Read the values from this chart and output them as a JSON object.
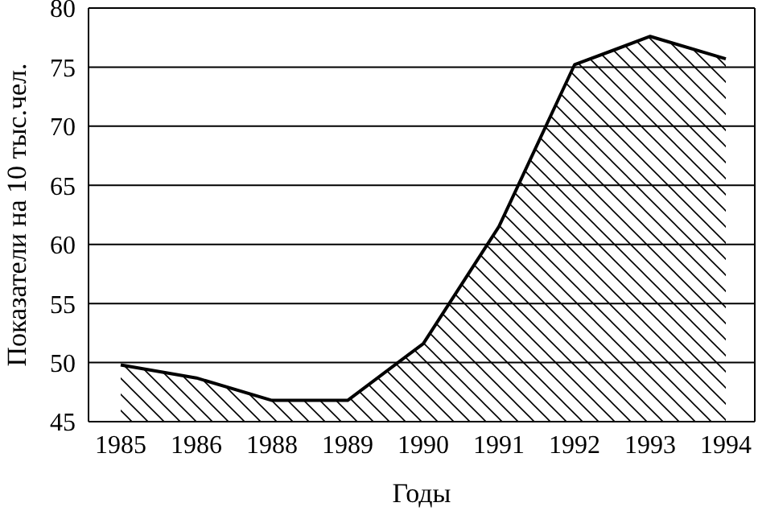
{
  "chart_data": {
    "type": "area",
    "xlabel": "Годы",
    "ylabel": "Показатели на 10 тыс.чел.",
    "categories": [
      "1985",
      "1986",
      "1988",
      "1989",
      "1990",
      "1991",
      "1992",
      "1993",
      "1994"
    ],
    "series": [
      {
        "color": "#000000",
        "values": [
          49.8,
          48.7,
          46.8,
          46.8,
          51.6,
          61.5,
          75.2,
          77.6,
          75.7
        ]
      }
    ],
    "ylim": [
      45,
      80
    ],
    "yticks": [
      45,
      50,
      55,
      60,
      65,
      70,
      75,
      80
    ],
    "grid": "y",
    "legend": false,
    "marker": "none",
    "line_style": "solid"
  }
}
